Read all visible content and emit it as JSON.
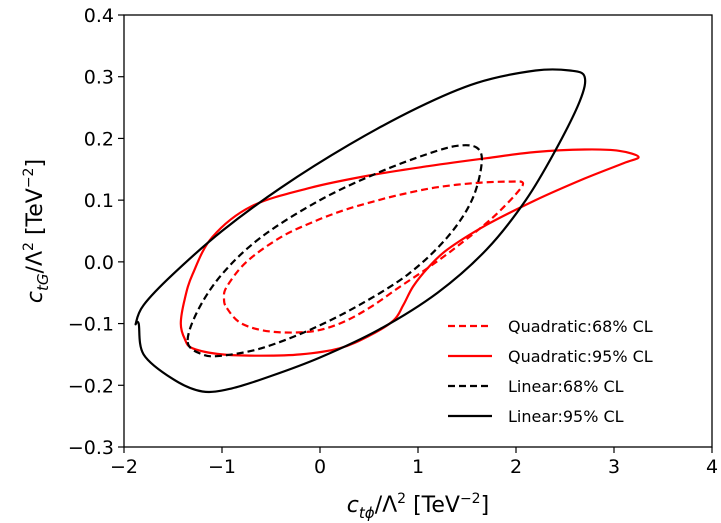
{
  "chart_data": {
    "type": "line",
    "title": "",
    "xlabel_parts": {
      "var": "c",
      "sub": "tϕ",
      "mid": "/Λ",
      "sup2": "2",
      "unit": " [TeV",
      "exp": "−2",
      "close": "]"
    },
    "ylabel_parts": {
      "var": "c",
      "sub": "tG",
      "mid": "/Λ",
      "sup2": "2",
      "unit": " [TeV",
      "exp": "−2",
      "close": "]"
    },
    "xlim": [
      -2,
      4
    ],
    "ylim": [
      -0.3,
      0.4
    ],
    "xticks": [
      -2,
      -1,
      0,
      1,
      2,
      3,
      4
    ],
    "xtick_labels": [
      "−2",
      "−1",
      "0",
      "1",
      "2",
      "3",
      "4"
    ],
    "yticks": [
      -0.3,
      -0.2,
      -0.1,
      0.0,
      0.1,
      0.2,
      0.3,
      0.4
    ],
    "ytick_labels": [
      "−0.3",
      "−0.2",
      "−0.1",
      "0.0",
      "0.1",
      "0.2",
      "0.3",
      "0.4"
    ],
    "grid": false,
    "legend_position": "bottom-right",
    "series": [
      {
        "name": "Quadratic:68% CL",
        "color": "#ff0000",
        "style": "dashed",
        "x": [
          -0.95,
          -0.8,
          -0.5,
          -0.1,
          0.2,
          0.5,
          0.8,
          1.1,
          1.4,
          1.75,
          2.0,
          2.07,
          1.95,
          1.6,
          1.2,
          0.85,
          0.55,
          0.25,
          -0.05,
          -0.4,
          -0.75,
          -0.95,
          -0.98,
          -0.95
        ],
        "y": [
          -0.075,
          -0.1,
          -0.113,
          -0.113,
          -0.1,
          -0.075,
          -0.042,
          -0.01,
          0.025,
          0.07,
          0.11,
          0.128,
          0.13,
          0.128,
          0.121,
          0.11,
          0.098,
          0.084,
          0.066,
          0.04,
          0.0,
          -0.04,
          -0.06,
          -0.075
        ]
      },
      {
        "name": "Quadratic:95% CL",
        "color": "#ff0000",
        "style": "solid",
        "x": [
          -1.38,
          -1.3,
          -1.0,
          -0.6,
          -0.2,
          0.2,
          0.5,
          0.75,
          0.85,
          0.95,
          1.1,
          1.3,
          1.7,
          2.2,
          2.7,
          3.1,
          3.25,
          3.05,
          2.7,
          2.2,
          1.7,
          1.1,
          0.5,
          -0.1,
          -0.7,
          -1.1,
          -1.3,
          -1.38,
          -1.42,
          -1.38
        ],
        "y": [
          -0.125,
          -0.14,
          -0.15,
          -0.152,
          -0.15,
          -0.14,
          -0.12,
          -0.095,
          -0.07,
          -0.04,
          -0.01,
          0.02,
          0.06,
          0.1,
          0.135,
          0.16,
          0.17,
          0.18,
          0.182,
          0.178,
          0.168,
          0.155,
          0.14,
          0.12,
          0.09,
          0.04,
          -0.02,
          -0.06,
          -0.1,
          -0.125
        ]
      },
      {
        "name": "Linear:68% CL",
        "color": "#000000",
        "style": "dashed",
        "x": [
          -1.35,
          -1.2,
          -1.0,
          -0.6,
          -0.1,
          0.4,
          0.9,
          1.3,
          1.55,
          1.65,
          1.6,
          1.4,
          1.1,
          0.6,
          0.0,
          -0.6,
          -1.0,
          -1.25,
          -1.35
        ],
        "y": [
          -0.13,
          -0.15,
          -0.152,
          -0.14,
          -0.11,
          -0.07,
          -0.02,
          0.04,
          0.1,
          0.16,
          0.185,
          0.188,
          0.175,
          0.145,
          0.1,
          0.04,
          -0.02,
          -0.08,
          -0.13
        ]
      },
      {
        "name": "Linear:95% CL",
        "color": "#000000",
        "style": "solid",
        "x": [
          -1.85,
          -1.8,
          -1.5,
          -1.2,
          -0.9,
          -0.5,
          0.0,
          0.6,
          1.2,
          1.7,
          2.1,
          2.4,
          2.65,
          2.7,
          2.55,
          2.2,
          1.6,
          1.0,
          0.3,
          -0.4,
          -1.0,
          -1.5,
          -1.8,
          -1.88,
          -1.85
        ],
        "y": [
          -0.1,
          -0.15,
          -0.19,
          -0.21,
          -0.205,
          -0.185,
          -0.155,
          -0.11,
          -0.05,
          0.02,
          0.1,
          0.18,
          0.26,
          0.3,
          0.31,
          0.31,
          0.29,
          0.25,
          0.19,
          0.12,
          0.05,
          -0.02,
          -0.07,
          -0.1,
          -0.1
        ]
      }
    ]
  }
}
